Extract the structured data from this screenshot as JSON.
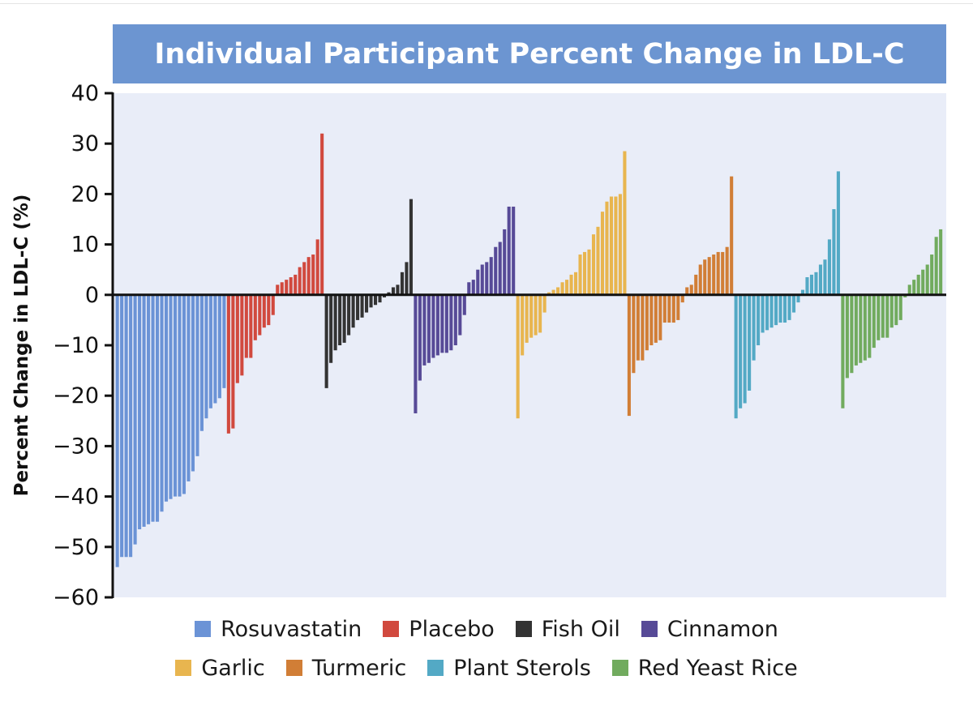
{
  "chart_data": {
    "type": "bar",
    "title": "Individual Participant Percent Change in LDL-C",
    "ylabel": "Percent Change in LDL-C (%)",
    "xlabel": "",
    "ylim": [
      -60,
      40
    ],
    "yticks": [
      "40",
      "30",
      "20",
      "10",
      "0",
      "−10",
      "−20",
      "−30",
      "−40",
      "−50",
      "−60"
    ],
    "ytick_values": [
      40,
      30,
      20,
      10,
      0,
      -10,
      -20,
      -30,
      -40,
      -50,
      -60
    ],
    "grid": false,
    "legend_position": "bottom",
    "series": [
      {
        "name": "Rosuvastatin",
        "color": "#6b93d6",
        "values": [
          -54,
          -52,
          -52,
          -52,
          -49.5,
          -46.5,
          -46,
          -45.5,
          -45,
          -45,
          -43,
          -41,
          -40.5,
          -40,
          -40,
          -39.5,
          -37,
          -35,
          -32,
          -27,
          -24.5,
          -22.5,
          -21.5,
          -20.5,
          -18.5
        ]
      },
      {
        "name": "Placebo",
        "color": "#d1493e",
        "values": [
          -27.5,
          -26.5,
          -17.5,
          -16,
          -12.5,
          -12.5,
          -9,
          -8,
          -6.5,
          -6,
          -4,
          2,
          2.5,
          3,
          3.5,
          4,
          5.5,
          6.5,
          7.5,
          8,
          11,
          32
        ]
      },
      {
        "name": "Fish Oil",
        "color": "#333333",
        "values": [
          -18.5,
          -13.5,
          -11,
          -10,
          -9.5,
          -8,
          -6.5,
          -5,
          -4.5,
          -3.5,
          -2.5,
          -2,
          -1.5,
          -0.5,
          0.5,
          1.5,
          2,
          4.5,
          6.5,
          19
        ]
      },
      {
        "name": "Cinnamon",
        "color": "#574a97",
        "values": [
          -23.5,
          -17,
          -14,
          -13.5,
          -12.5,
          -12,
          -11.5,
          -11.5,
          -11,
          -10,
          -8,
          -4,
          2.5,
          3,
          5,
          6,
          6.5,
          7.5,
          9.5,
          10.5,
          13,
          17.5,
          17.5
        ]
      },
      {
        "name": "Garlic",
        "color": "#e8b54f",
        "values": [
          -24.5,
          -12,
          -9.5,
          -8.5,
          -8,
          -7.5,
          -3.5,
          0.5,
          1,
          1.5,
          2.5,
          3,
          4,
          4.5,
          8,
          8.5,
          9,
          12,
          13.5,
          16.5,
          18.5,
          19.5,
          19.5,
          20,
          28.5
        ]
      },
      {
        "name": "Turmeric",
        "color": "#d17e36",
        "values": [
          -24,
          -15.5,
          -13,
          -13,
          -11,
          -10,
          -9.5,
          -9,
          -5.5,
          -5.5,
          -5.5,
          -5,
          -1.5,
          1.5,
          2,
          4,
          6,
          7,
          7.5,
          8,
          8.5,
          8.5,
          9.5,
          23.5
        ]
      },
      {
        "name": "Plant Sterols",
        "color": "#53a9c5",
        "values": [
          -24.5,
          -22.5,
          -21.5,
          -19,
          -13,
          -10,
          -7.5,
          -7,
          -6.5,
          -6,
          -5.5,
          -5.5,
          -5,
          -3.5,
          -1.5,
          1,
          3.5,
          4,
          4.5,
          6,
          7,
          11,
          17,
          24.5
        ]
      },
      {
        "name": "Red Yeast Rice",
        "color": "#71ab5e",
        "values": [
          -22.5,
          -16.5,
          -15.5,
          -14,
          -13.5,
          -13,
          -12.5,
          -10.5,
          -9,
          -8.5,
          -8.5,
          -6.5,
          -6,
          -5,
          -0.5,
          2,
          3,
          4,
          5,
          6,
          8,
          11.5,
          13
        ]
      }
    ]
  },
  "legend": {
    "row1": [
      {
        "label": "Rosuvastatin",
        "color": "#6b93d6"
      },
      {
        "label": "Placebo",
        "color": "#d1493e"
      },
      {
        "label": "Fish Oil",
        "color": "#333333"
      },
      {
        "label": "Cinnamon",
        "color": "#574a97"
      }
    ],
    "row2": [
      {
        "label": "Garlic",
        "color": "#e8b54f"
      },
      {
        "label": "Turmeric",
        "color": "#d17e36"
      },
      {
        "label": "Plant Sterols",
        "color": "#53a9c5"
      },
      {
        "label": "Red Yeast Rice",
        "color": "#71ab5e"
      }
    ]
  },
  "colors": {
    "title_background": "#6c95d1",
    "plot_background": "#e9edf8"
  }
}
